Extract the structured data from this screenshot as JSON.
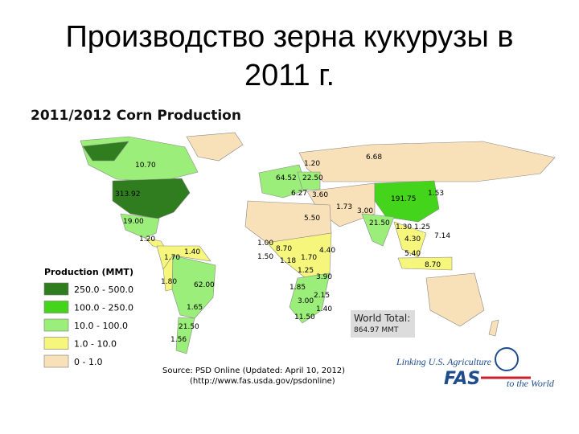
{
  "slide_title": [
    "Производство зерна кукурузы в",
    "2011 г."
  ],
  "map_title": "2011/2012 Corn Production",
  "legend": {
    "title": "Production (MMT)",
    "items": [
      {
        "label": "250.0 - 500.0",
        "color": "#2f7d1f"
      },
      {
        "label": "100.0 - 250.0",
        "color": "#45d41c"
      },
      {
        "label": "10.0 - 100.0",
        "color": "#9cee7a"
      },
      {
        "label": "1.0 - 10.0",
        "color": "#f6f67c"
      },
      {
        "label": "0 - 1.0",
        "color": "#f8e0b8"
      }
    ]
  },
  "map_labels": [
    "10.70",
    "1.20",
    "6.68",
    "64.52",
    "22.50",
    "6.27",
    "3.60",
    "313.92",
    "1.53",
    "191.75",
    "1.73",
    "3.00",
    "5.50",
    "19.00",
    "21.50",
    "1.30",
    "1.25",
    "7.14",
    "4.30",
    "1.20",
    "1.00",
    "8.70",
    "4.40",
    "5.40",
    "1.70",
    "1.40",
    "1.50",
    "1.18",
    "1.70",
    "8.70",
    "1.25",
    "3.90",
    "1.80",
    "62.00",
    "1.85",
    "2.15",
    "3.00",
    "1.65",
    "1.40",
    "11.50",
    "21.50",
    "1.56"
  ],
  "world_total": {
    "label": "World Total:",
    "value": "864.97 MMT"
  },
  "source": [
    "Source: PSD Online (Updated: April 10, 2012)",
    "(http://www.fas.usda.gov/psdonline)"
  ],
  "logo": {
    "tagline": "Linking U.S. Agriculture",
    "name": "FAS",
    "suffix": "to the World"
  }
}
